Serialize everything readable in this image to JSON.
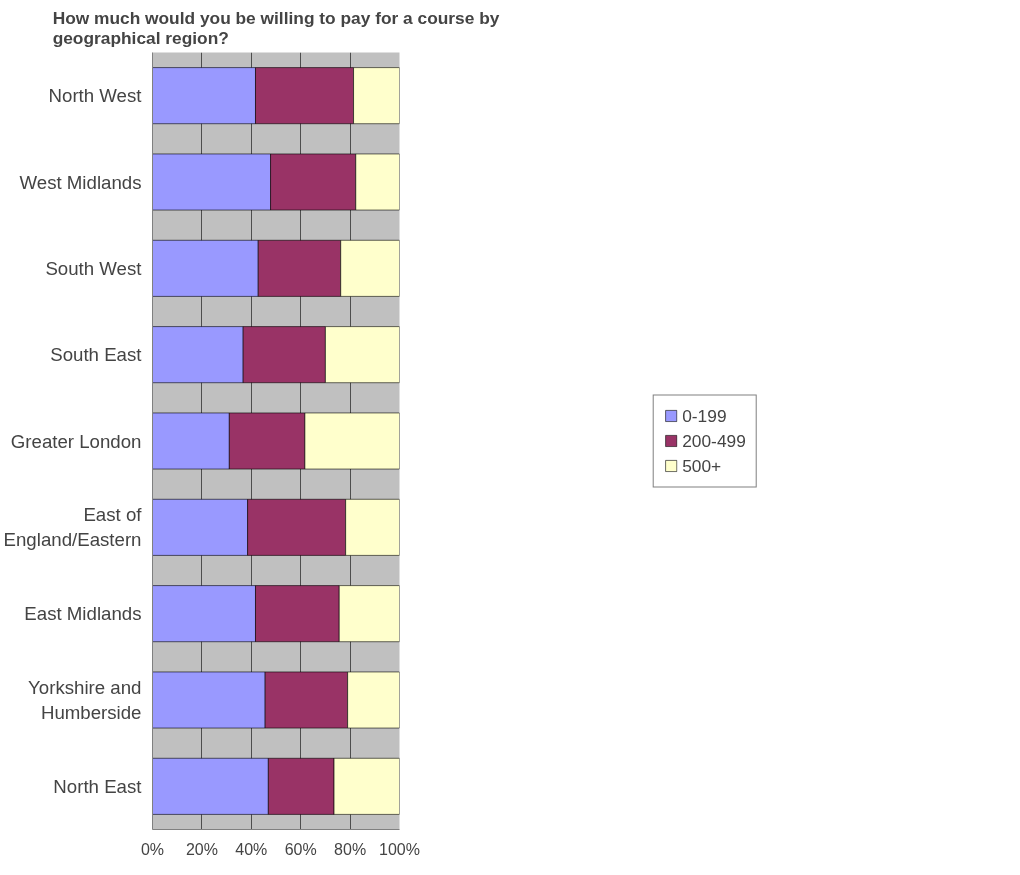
{
  "chart_data": {
    "type": "bar",
    "orientation": "horizontal",
    "stacked": true,
    "title": "How much would you be willing to pay for a course by geographical region?",
    "categories": [
      "North West",
      "West Midlands",
      "South West",
      "South East",
      "Greater London",
      "East of England/Eastern",
      "East Midlands",
      "Yorkshire and Humberside",
      "North East"
    ],
    "series": [
      {
        "name": "0-199",
        "color": "#9999ff",
        "values": [
          41.7,
          47.8,
          42.8,
          36.7,
          31.1,
          38.5,
          41.7,
          45.6,
          46.9
        ]
      },
      {
        "name": "200-499",
        "color": "#993366",
        "values": [
          39.7,
          34.5,
          33.4,
          33.3,
          30.6,
          39.7,
          33.9,
          33.4,
          26.6
        ]
      },
      {
        "name": "500+",
        "color": "#ffffcc",
        "values": [
          18.6,
          17.7,
          23.8,
          30.0,
          38.3,
          21.8,
          24.4,
          21.0,
          26.5
        ]
      }
    ],
    "xlim": [
      0,
      100
    ],
    "xticks": [
      {
        "value": 0,
        "label": "0%"
      },
      {
        "value": 20,
        "label": "20%"
      },
      {
        "value": 40,
        "label": "40%"
      },
      {
        "value": 60,
        "label": "60%"
      },
      {
        "value": 80,
        "label": "80%"
      },
      {
        "value": 100,
        "label": "100%"
      }
    ],
    "grid": "x",
    "legend": "right"
  }
}
